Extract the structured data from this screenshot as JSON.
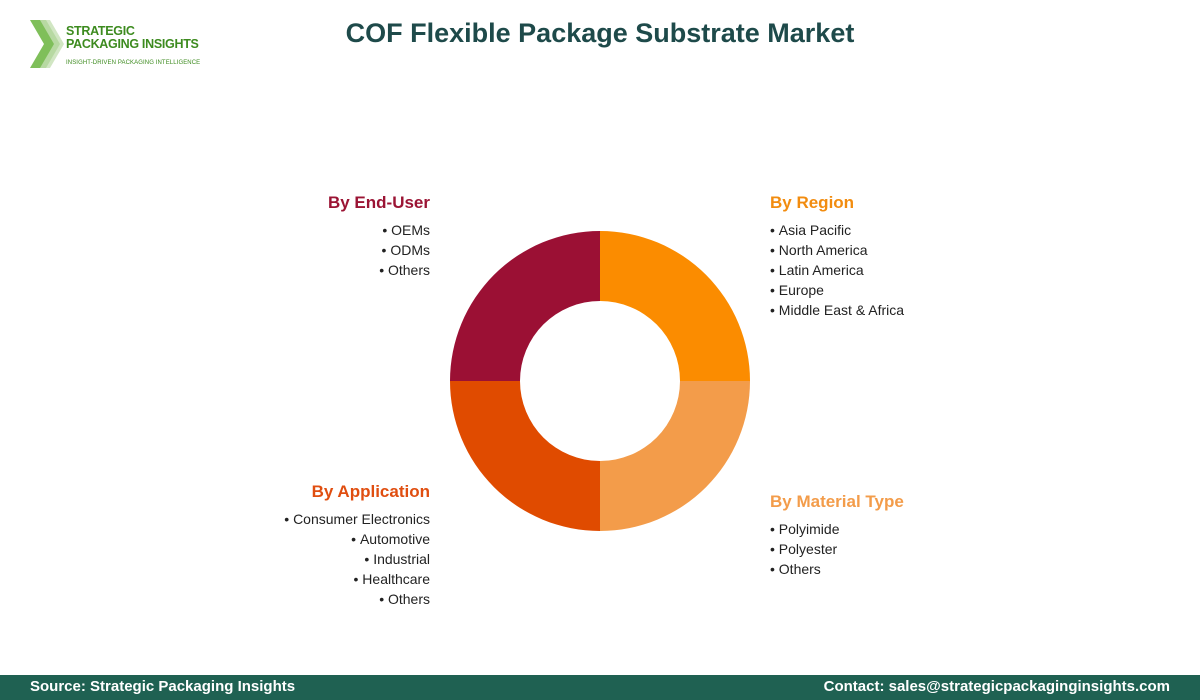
{
  "logo": {
    "line1": "STRATEGIC",
    "line2": "PACKAGING INSIGHTS",
    "tagline": "INSIGHT-DRIVEN PACKAGING INTELLIGENCE"
  },
  "title": "COF Flexible Package Substrate Market",
  "segments": {
    "end_user": {
      "heading": "By End-User",
      "color": "#9b1434",
      "items": [
        "OEMs",
        "ODMs",
        "Others"
      ]
    },
    "region": {
      "heading": "By Region",
      "color": "#f28c0f",
      "items": [
        "Asia Pacific",
        "North America",
        "Latin America",
        "Europe",
        "Middle East & Africa"
      ]
    },
    "application": {
      "heading": "By Application",
      "color": "#e04e10",
      "items": [
        "Consumer Electronics",
        "Automotive",
        "Industrial",
        "Healthcare",
        "Others"
      ]
    },
    "material_type": {
      "heading": "By Material Type",
      "color": "#f39c4a",
      "items": [
        "Polyimide",
        "Polyester",
        "Others"
      ]
    }
  },
  "footer": {
    "source": "Source: Strategic Packaging Insights",
    "contact": "Contact: sales@strategicpackaginginsights.com"
  }
}
